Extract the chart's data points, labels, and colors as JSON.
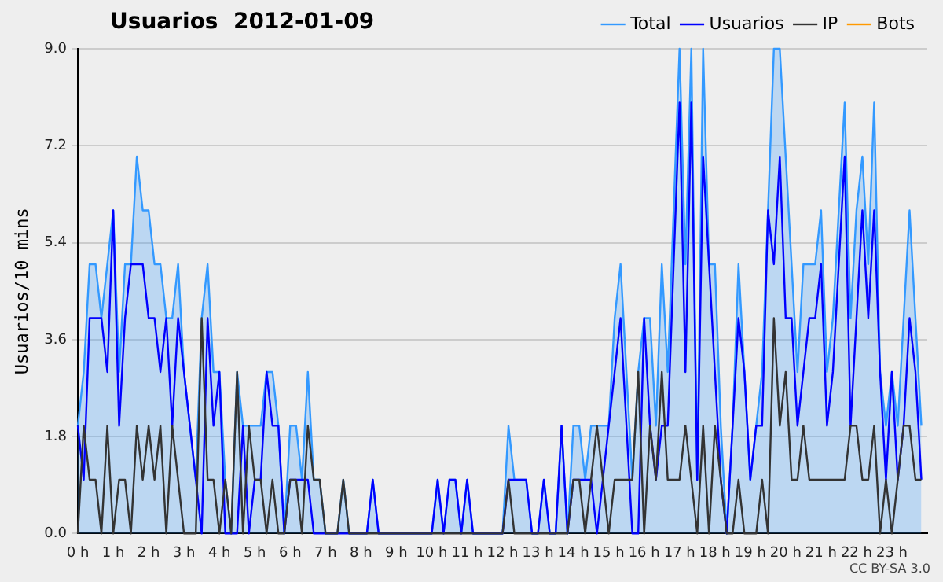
{
  "chart_data": {
    "type": "line",
    "title": "Usuarios  2012-01-09",
    "ylabel": "Usuarios/10 mins",
    "annotations": [
      "CC BY-SA 3.0"
    ],
    "x": [
      0,
      0.1667,
      0.3333,
      0.5,
      0.6667,
      0.8333,
      1,
      1.1667,
      1.3333,
      1.5,
      1.6667,
      1.8333,
      2,
      2.1667,
      2.3333,
      2.5,
      2.6667,
      2.8333,
      3,
      3.1667,
      3.3333,
      3.5,
      3.6667,
      3.8333,
      4,
      4.1667,
      4.3333,
      4.5,
      4.6667,
      4.8333,
      5,
      5.1667,
      5.3333,
      5.5,
      5.6667,
      5.8333,
      6,
      6.1667,
      6.3333,
      6.5,
      6.6667,
      6.8333,
      7,
      7.1667,
      7.3333,
      7.5,
      7.6667,
      7.8333,
      8,
      8.1667,
      8.3333,
      8.5,
      8.6667,
      8.8333,
      9,
      9.1667,
      9.3333,
      9.5,
      9.6667,
      9.8333,
      10,
      10.1667,
      10.3333,
      10.5,
      10.6667,
      10.8333,
      11,
      11.1667,
      11.3333,
      11.5,
      11.6667,
      11.8333,
      12,
      12.1667,
      12.3333,
      12.5,
      12.6667,
      12.8333,
      13,
      13.1667,
      13.3333,
      13.5,
      13.6667,
      13.8333,
      14,
      14.1667,
      14.3333,
      14.5,
      14.6667,
      14.8333,
      15,
      15.1667,
      15.3333,
      15.5,
      15.6667,
      15.8333,
      16,
      16.1667,
      16.3333,
      16.5,
      16.6667,
      16.8333,
      17,
      17.1667,
      17.3333,
      17.5,
      17.6667,
      17.8333,
      18,
      18.1667,
      18.3333,
      18.5,
      18.6667,
      18.8333,
      19,
      19.1667,
      19.3333,
      19.5,
      19.6667,
      19.8333,
      20,
      20.1667,
      20.3333,
      20.5,
      20.6667,
      20.8333,
      21,
      21.1667,
      21.3333,
      21.5,
      21.6667,
      21.8333,
      22,
      22.1667,
      22.3333,
      22.5,
      22.6667,
      22.8333,
      23,
      23.1667,
      23.3333,
      23.5,
      23.6667,
      23.8333
    ],
    "series": [
      {
        "name": "Total",
        "type": "area",
        "color": "#3399ff",
        "values": [
          2,
          3,
          5,
          5,
          4,
          5,
          6,
          3,
          5,
          5,
          7,
          6,
          6,
          5,
          5,
          4,
          4,
          5,
          3,
          2,
          1,
          4,
          5,
          3,
          3,
          1,
          0,
          3,
          2,
          2,
          2,
          2,
          3,
          3,
          2,
          0,
          2,
          2,
          1,
          3,
          1,
          1,
          0,
          0,
          0,
          1,
          0,
          0,
          0,
          0,
          1,
          0,
          0,
          0,
          0,
          0,
          0,
          0,
          0,
          0,
          0,
          1,
          0,
          1,
          1,
          0,
          1,
          0,
          0,
          0,
          0,
          0,
          0,
          2,
          1,
          1,
          1,
          0,
          0,
          1,
          0,
          0,
          2,
          0,
          2,
          2,
          1,
          2,
          2,
          2,
          2,
          4,
          5,
          3,
          1,
          3,
          4,
          4,
          2,
          5,
          3,
          6,
          9,
          5,
          9,
          1,
          9,
          5,
          5,
          2,
          0,
          2,
          5,
          3,
          1,
          2,
          3,
          6,
          9,
          9,
          7,
          5,
          3,
          5,
          5,
          5,
          6,
          3,
          4,
          6,
          8,
          4,
          6,
          7,
          5,
          8,
          3,
          2,
          3,
          2,
          4,
          6,
          4,
          2
        ]
      },
      {
        "name": "Usuarios",
        "color": "#0000ff",
        "values": [
          2,
          1,
          4,
          4,
          4,
          3,
          6,
          2,
          4,
          5,
          5,
          5,
          4,
          4,
          3,
          4,
          2,
          4,
          3,
          2,
          1,
          0,
          4,
          2,
          3,
          0,
          0,
          0,
          2,
          0,
          1,
          1,
          3,
          2,
          2,
          0,
          1,
          1,
          1,
          1,
          0,
          0,
          0,
          0,
          0,
          0,
          0,
          0,
          0,
          0,
          1,
          0,
          0,
          0,
          0,
          0,
          0,
          0,
          0,
          0,
          0,
          1,
          0,
          1,
          1,
          0,
          1,
          0,
          0,
          0,
          0,
          0,
          0,
          1,
          1,
          1,
          1,
          0,
          0,
          1,
          0,
          0,
          2,
          0,
          1,
          1,
          1,
          1,
          0,
          1,
          2,
          3,
          4,
          2,
          0,
          0,
          4,
          2,
          1,
          2,
          2,
          5,
          8,
          3,
          8,
          1,
          7,
          5,
          3,
          1,
          0,
          2,
          4,
          3,
          1,
          2,
          2,
          6,
          5,
          7,
          4,
          4,
          2,
          3,
          4,
          4,
          5,
          2,
          3,
          5,
          7,
          2,
          4,
          6,
          4,
          6,
          3,
          1,
          3,
          1,
          2,
          4,
          3,
          1
        ]
      },
      {
        "name": "IP",
        "color": "#333333",
        "values": [
          0,
          2,
          1,
          1,
          0,
          2,
          0,
          1,
          1,
          0,
          2,
          1,
          2,
          1,
          2,
          0,
          2,
          1,
          0,
          0,
          0,
          4,
          1,
          1,
          0,
          1,
          0,
          3,
          0,
          2,
          1,
          1,
          0,
          1,
          0,
          0,
          1,
          1,
          0,
          2,
          1,
          1,
          0,
          0,
          0,
          1,
          0,
          0,
          0,
          0,
          0,
          0,
          0,
          0,
          0,
          0,
          0,
          0,
          0,
          0,
          0,
          0,
          0,
          0,
          0,
          0,
          0,
          0,
          0,
          0,
          0,
          0,
          0,
          1,
          0,
          0,
          0,
          0,
          0,
          0,
          0,
          0,
          0,
          0,
          1,
          1,
          0,
          1,
          2,
          1,
          0,
          1,
          1,
          1,
          1,
          3,
          0,
          2,
          1,
          3,
          1,
          1,
          1,
          2,
          1,
          0,
          2,
          0,
          2,
          1,
          0,
          0,
          1,
          0,
          0,
          0,
          1,
          0,
          4,
          2,
          3,
          1,
          1,
          2,
          1,
          1,
          1,
          1,
          1,
          1,
          1,
          2,
          2,
          1,
          1,
          2,
          0,
          1,
          0,
          1,
          2,
          2,
          1,
          1
        ]
      },
      {
        "name": "Bots",
        "color": "#ff9900",
        "values": [
          null,
          null,
          null,
          null,
          null,
          null,
          null,
          null,
          null,
          null,
          null,
          null,
          null,
          null,
          null,
          null,
          null,
          null,
          null,
          null,
          null,
          null,
          null,
          null,
          null,
          null,
          null,
          null,
          null,
          null,
          null,
          null,
          null,
          null,
          null,
          null,
          null,
          null,
          null,
          null,
          null,
          null,
          null,
          null,
          null,
          null,
          null,
          null,
          null,
          null,
          null,
          null,
          null,
          null,
          null,
          null,
          null,
          null,
          null,
          null,
          null,
          null,
          null,
          null,
          null,
          null,
          null,
          null,
          null,
          null,
          null,
          null,
          null,
          null,
          null,
          null,
          null,
          null,
          null,
          null,
          null,
          null,
          null,
          null,
          null,
          null,
          null,
          null,
          null,
          null,
          null,
          null,
          null,
          null,
          null,
          null,
          null,
          null,
          null,
          null,
          null,
          null,
          null,
          null,
          null,
          null,
          null,
          null,
          null,
          null,
          null,
          null,
          null,
          null,
          null,
          null,
          null,
          null,
          null,
          null,
          null,
          null,
          null,
          null,
          null,
          null,
          null,
          null,
          null,
          null,
          null,
          null,
          null,
          null,
          null,
          null,
          null,
          null,
          null,
          null,
          null,
          null,
          null,
          null
        ]
      }
    ],
    "xlim": [
      0,
      24
    ],
    "xticks": [
      {
        "value": 0,
        "label": "0 h"
      },
      {
        "value": 1,
        "label": "1 h"
      },
      {
        "value": 2,
        "label": "2 h"
      },
      {
        "value": 3,
        "label": "3 h"
      },
      {
        "value": 4,
        "label": "4 h"
      },
      {
        "value": 5,
        "label": "5 h"
      },
      {
        "value": 6,
        "label": "6 h"
      },
      {
        "value": 7,
        "label": "7 h"
      },
      {
        "value": 8,
        "label": "8 h"
      },
      {
        "value": 9,
        "label": "9 h"
      },
      {
        "value": 10,
        "label": "10 h"
      },
      {
        "value": 11,
        "label": "11 h"
      },
      {
        "value": 12,
        "label": "12 h"
      },
      {
        "value": 13,
        "label": "13 h"
      },
      {
        "value": 14,
        "label": "14 h"
      },
      {
        "value": 15,
        "label": "15 h"
      },
      {
        "value": 16,
        "label": "16 h"
      },
      {
        "value": 17,
        "label": "17 h"
      },
      {
        "value": 18,
        "label": "18 h"
      },
      {
        "value": 19,
        "label": "19 h"
      },
      {
        "value": 20,
        "label": "20 h"
      },
      {
        "value": 21,
        "label": "21 h"
      },
      {
        "value": 22,
        "label": "22 h"
      },
      {
        "value": 23,
        "label": "23 h"
      }
    ],
    "ylim": [
      0,
      9
    ],
    "yticks": [
      {
        "value": 0,
        "label": "0.0"
      },
      {
        "value": 1.8,
        "label": "1.8"
      },
      {
        "value": 3.6,
        "label": "3.6"
      },
      {
        "value": 5.4,
        "label": "5.4"
      },
      {
        "value": 7.2,
        "label": "7.2"
      },
      {
        "value": 9,
        "label": "9.0"
      }
    ],
    "grid": "y",
    "legend": "top right",
    "marker": "none",
    "line_style": "solid"
  }
}
